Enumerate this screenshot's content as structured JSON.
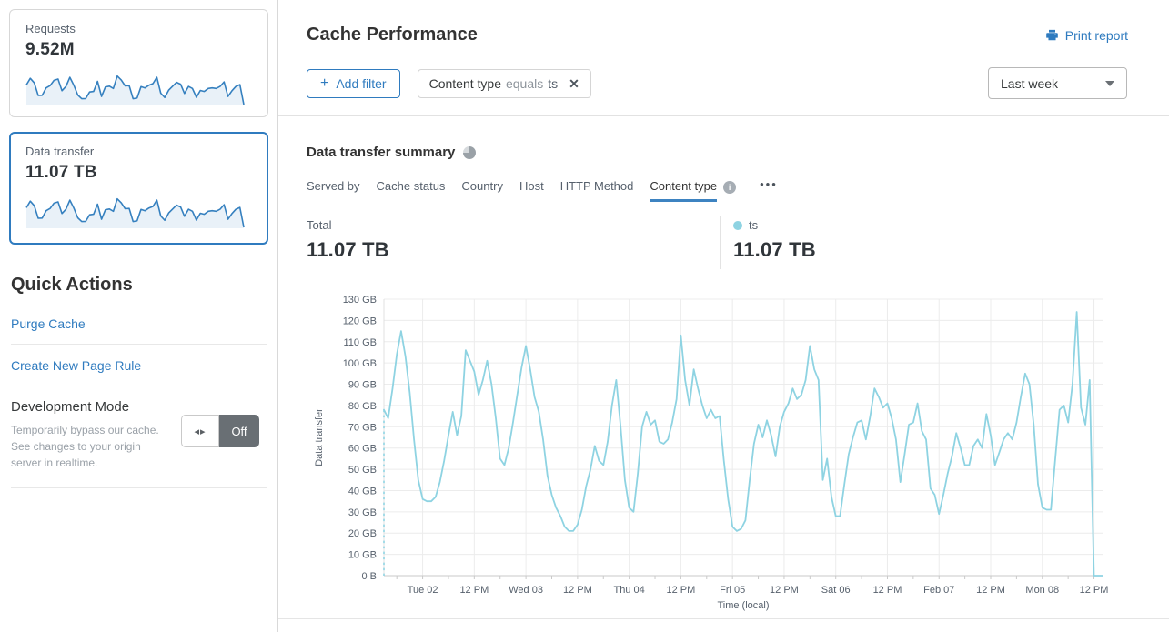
{
  "sidebar": {
    "cards": [
      {
        "label": "Requests",
        "value": "9.52M",
        "selected": false
      },
      {
        "label": "Data transfer",
        "value": "11.07 TB",
        "selected": true
      }
    ],
    "sparkline_values": [
      78,
      104,
      86,
      36,
      37,
      66,
      75,
      96,
      101,
      55,
      72,
      108,
      77,
      38,
      23,
      24,
      50,
      52,
      92,
      32,
      70,
      73,
      64,
      113,
      97,
      74,
      75,
      23,
      26,
      71,
      66,
      77,
      83,
      108,
      45,
      28,
      57,
      73,
      88,
      81,
      44,
      72,
      64,
      29,
      56,
      52,
      64,
      66,
      64,
      72,
      90,
      32,
      55,
      72,
      79,
      0
    ],
    "sparkline_color": "#3580bf",
    "sparkline_fill": "#e9f1f8",
    "quick_actions": {
      "title": "Quick Actions",
      "links": [
        "Purge Cache",
        "Create New Page Rule"
      ],
      "dev_mode": {
        "title": "Development Mode",
        "description": "Temporarily bypass our cache. See changes to your origin server in realtime.",
        "toggle_state": "Off"
      }
    }
  },
  "header": {
    "title": "Cache Performance",
    "print_label": "Print report",
    "add_filter_label": "Add filter",
    "filter_chip": {
      "field": "Content type",
      "operator": "equals",
      "value": "ts"
    },
    "time_range": "Last week"
  },
  "summary": {
    "title": "Data transfer summary",
    "tabs": [
      "Served by",
      "Cache status",
      "Country",
      "Host",
      "HTTP Method",
      "Content type"
    ],
    "active_tab": "Content type",
    "total": {
      "label": "Total",
      "value": "11.07 TB"
    },
    "legend": {
      "series": "ts",
      "value": "11.07 TB",
      "color": "#8ed3e2"
    }
  },
  "icons": {
    "plus_glyph": "+",
    "close_glyph": "✕",
    "info_glyph": "i",
    "ellipsis_glyph": "•••",
    "toggle_arrows_glyph": "◂▸"
  },
  "chart_data": {
    "type": "line",
    "title": "Data transfer summary",
    "xlabel": "Time (local)",
    "ylabel": "Data transfer",
    "x_tick_labels": [
      "Tue 02",
      "12 PM",
      "Wed 03",
      "12 PM",
      "Thu 04",
      "12 PM",
      "Fri 05",
      "12 PM",
      "Sat 06",
      "12 PM",
      "Feb 07",
      "12 PM",
      "Mon 08",
      "12 PM"
    ],
    "y_tick_labels": [
      "0 B",
      "10 GB",
      "20 GB",
      "30 GB",
      "40 GB",
      "50 GB",
      "60 GB",
      "70 GB",
      "80 GB",
      "90 GB",
      "100 GB",
      "110 GB",
      "120 GB",
      "130 GB"
    ],
    "ylim_gb": [
      0,
      130
    ],
    "x_hours_total": 167,
    "first_tick_hour": 9,
    "tick_spacing_hours": 12,
    "minor_tick_spacing_hours": 6,
    "grid": true,
    "leading_dashed_drop": true,
    "series": [
      {
        "name": "ts",
        "color": "#8ed3e2",
        "total": "11.07 TB",
        "unit": "GB",
        "values_gb": [
          78,
          74,
          88,
          104,
          115,
          103,
          86,
          64,
          45,
          36,
          35,
          35,
          37,
          44,
          54,
          66,
          77,
          66,
          75,
          106,
          101,
          96,
          85,
          92,
          101,
          90,
          74,
          55,
          52,
          60,
          72,
          85,
          98,
          108,
          97,
          84,
          77,
          64,
          47,
          38,
          32,
          28,
          23,
          21,
          21,
          24,
          31,
          42,
          50,
          61,
          54,
          52,
          63,
          80,
          92,
          70,
          45,
          32,
          30,
          48,
          70,
          77,
          71,
          73,
          63,
          62,
          64,
          72,
          83,
          113,
          92,
          80,
          97,
          88,
          80,
          74,
          78,
          74,
          75,
          54,
          36,
          23,
          21,
          22,
          26,
          45,
          62,
          71,
          65,
          73,
          66,
          56,
          70,
          77,
          81,
          88,
          83,
          85,
          92,
          108,
          97,
          92,
          45,
          55,
          37,
          28,
          28,
          43,
          57,
          65,
          72,
          73,
          64,
          75,
          88,
          84,
          79,
          81,
          74,
          64,
          44,
          57,
          71,
          72,
          81,
          68,
          64,
          41,
          38,
          29,
          38,
          48,
          56,
          67,
          60,
          52,
          52,
          61,
          64,
          60,
          76,
          66,
          52,
          58,
          64,
          67,
          64,
          72,
          84,
          95,
          90,
          71,
          43,
          32,
          31,
          31,
          55,
          78,
          80,
          72,
          90,
          124,
          79,
          71,
          92,
          0,
          0,
          0
        ]
      }
    ]
  }
}
